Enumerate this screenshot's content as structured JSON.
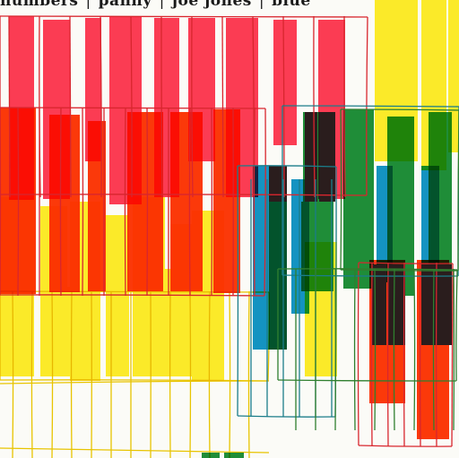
{
  "cover": {
    "title_parts": [
      "numbers",
      "panny",
      "joe jones",
      "blue"
    ]
  },
  "colors": {
    "background": "#fbfbf7",
    "red": "#ff3d55",
    "orange_red": "#ff3a0a",
    "yellow": "#ffee2a",
    "blue": "#1495c8",
    "green": "#1f8f3a",
    "black": "#2a1d1d",
    "line_red": "#d8262e",
    "line_yellow": "#e8c400",
    "line_teal": "#1b7d8a",
    "line_green": "#2f7f2f"
  }
}
